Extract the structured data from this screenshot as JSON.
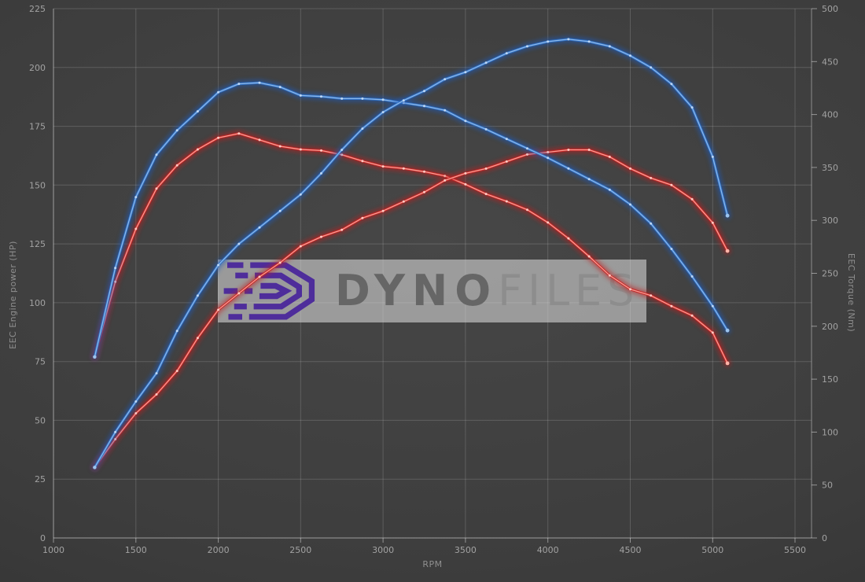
{
  "watermark": {
    "brand_part1": "Dyno",
    "brand_part2": "Files",
    "logo_color": "#4e2d9b",
    "banner_color": "rgba(213,213,213,0.60)"
  },
  "chart_data": {
    "type": "line",
    "xlabel": "RPM",
    "ylabel_left": "EEC Engine power (HP)",
    "ylabel_right": "EEC Torque (Nm)",
    "xlim": [
      1000,
      5600
    ],
    "ylim_hp": [
      0,
      225
    ],
    "ylim_nm": [
      0,
      500
    ],
    "x_ticks": [
      1000,
      1500,
      2000,
      2500,
      3000,
      3500,
      4000,
      4500,
      5000,
      5500
    ],
    "hp_ticks": [
      0,
      25,
      50,
      75,
      100,
      125,
      150,
      175,
      200,
      225
    ],
    "nm_ticks": [
      0,
      50,
      100,
      150,
      200,
      250,
      300,
      350,
      400,
      450,
      500
    ],
    "grid": true,
    "legend": "none",
    "x": [
      1250,
      1375,
      1500,
      1625,
      1750,
      1875,
      2000,
      2125,
      2250,
      2375,
      2500,
      2625,
      2750,
      2875,
      3000,
      3125,
      3250,
      3375,
      3500,
      3625,
      3750,
      3875,
      4000,
      4125,
      4250,
      4375,
      4500,
      4625,
      4750,
      4875,
      5000,
      5090
    ],
    "series": [
      {
        "name": "red-torque",
        "unit": "Nm",
        "axis": "nm",
        "color": "#c62525",
        "glow": "#c01d1d",
        "core": "#ffb4a8",
        "dot": "#ffd2ca",
        "values": [
          171,
          242,
          292,
          330,
          352,
          367,
          378,
          382,
          376,
          370,
          367,
          366,
          362,
          356,
          351,
          349,
          346,
          342,
          334,
          325,
          318,
          310,
          298,
          283,
          266,
          248,
          235,
          229,
          219,
          210,
          194,
          165
        ]
      },
      {
        "name": "red-power",
        "unit": "HP",
        "axis": "hp",
        "color": "#c62525",
        "glow": "#c01d1d",
        "core": "#ffb4a8",
        "dot": "#ffd2ca",
        "values": [
          30,
          42,
          53,
          61,
          71,
          85,
          97,
          104,
          111,
          117,
          124,
          128,
          131,
          136,
          139,
          143,
          147,
          152,
          155,
          157,
          160,
          163,
          164,
          165,
          165,
          162,
          157,
          153,
          150,
          144,
          134,
          122
        ]
      },
      {
        "name": "blue-torque",
        "unit": "Nm",
        "axis": "nm",
        "color": "#2e6fc4",
        "glow": "#1d5bbf",
        "core": "#9cc4ef",
        "dot": "#c4dcf6",
        "values": [
          171,
          255,
          322,
          362,
          385,
          403,
          421,
          429,
          430,
          426,
          418,
          417,
          415,
          415,
          414,
          411,
          408,
          404,
          394,
          386,
          377,
          368,
          359,
          349,
          339,
          329,
          315,
          297,
          273,
          247,
          219,
          196
        ]
      },
      {
        "name": "blue-power",
        "unit": "HP",
        "axis": "hp",
        "color": "#2e6fc4",
        "glow": "#1d5bbf",
        "core": "#9cc4ef",
        "dot": "#c4dcf6",
        "values": [
          30,
          45,
          58,
          70,
          88,
          103,
          116,
          125,
          132,
          139,
          146,
          155,
          165,
          174,
          181,
          186,
          190,
          195,
          198,
          202,
          206,
          209,
          211,
          212,
          211,
          209,
          205,
          200,
          193,
          183,
          162,
          137
        ]
      }
    ]
  }
}
